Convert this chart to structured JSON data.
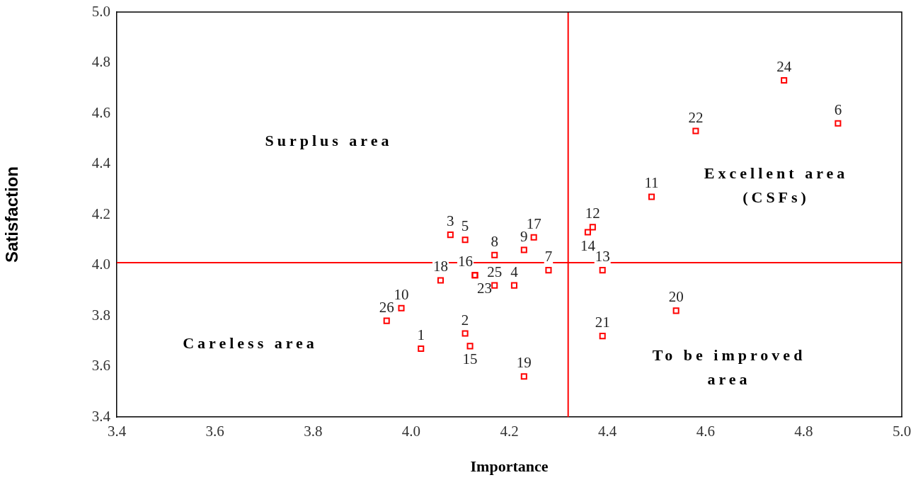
{
  "chart_data": {
    "type": "scatter",
    "xlabel": "Importance",
    "ylabel": "Satisfaction",
    "xlim": [
      3.4,
      5.0
    ],
    "ylim": [
      3.4,
      5.0
    ],
    "xticks": [
      3.4,
      3.6,
      3.8,
      {
        "value": 4,
        "label": "4.0"
      },
      4.2,
      4.4,
      4.6,
      4.8,
      {
        "value": 5,
        "label": "5.0"
      }
    ],
    "yticks": [
      3.4,
      3.6,
      3.8,
      {
        "value": 4,
        "label": "4.0"
      },
      4.2,
      4.4,
      4.6,
      4.8,
      {
        "value": 5,
        "label": "5.0"
      }
    ],
    "grid": false,
    "legend": false,
    "marker": "square",
    "series": [
      {
        "color": "#ff0000",
        "x": [
          4.02,
          4.11,
          4.08,
          4.21,
          4.11,
          4.87,
          4.28,
          4.17,
          4.23,
          3.98,
          4.49,
          4.37,
          4.39,
          4.36,
          4.12,
          4.13,
          4.25,
          4.06,
          4.23,
          4.54,
          4.39,
          4.58,
          4.13,
          4.76,
          4.17,
          3.95
        ],
        "values": [
          3.67,
          3.73,
          4.12,
          3.92,
          4.1,
          4.56,
          3.98,
          4.04,
          4.06,
          3.83,
          4.27,
          4.15,
          3.98,
          4.13,
          3.68,
          3.96,
          4.11,
          3.94,
          3.56,
          3.82,
          3.72,
          4.53,
          3.96,
          4.73,
          3.92,
          3.78
        ]
      }
    ],
    "ref_lines": [
      {
        "axis": "x",
        "value": 4.32,
        "color": "#ff0000"
      },
      {
        "axis": "y",
        "value": 4.01,
        "color": "#ff0000"
      }
    ],
    "annotations": [
      {
        "text": "1",
        "x": 4.02,
        "y": 3.67
      },
      {
        "text": "2",
        "x": 4.11,
        "y": 3.73
      },
      {
        "text": "3",
        "x": 4.08,
        "y": 4.12
      },
      {
        "text": "4",
        "x": 4.21,
        "y": 3.92
      },
      {
        "text": "5",
        "x": 4.11,
        "y": 4.1
      },
      {
        "text": "6",
        "x": 4.87,
        "y": 4.56
      },
      {
        "text": "7",
        "x": 4.28,
        "y": 3.98
      },
      {
        "text": "8",
        "x": 4.17,
        "y": 4.04
      },
      {
        "text": "9",
        "x": 4.23,
        "y": 4.06
      },
      {
        "text": "10",
        "x": 3.98,
        "y": 3.83
      },
      {
        "text": "11",
        "x": 4.49,
        "y": 4.27
      },
      {
        "text": "12",
        "x": 4.37,
        "y": 4.15
      },
      {
        "text": "13",
        "x": 4.39,
        "y": 3.98
      },
      {
        "text": "14",
        "x": 4.36,
        "y": 4.13
      },
      {
        "text": "15",
        "x": 4.12,
        "y": 3.68
      },
      {
        "text": "16",
        "x": 4.13,
        "y": 3.96
      },
      {
        "text": "17",
        "x": 4.25,
        "y": 4.11
      },
      {
        "text": "18",
        "x": 4.06,
        "y": 3.94
      },
      {
        "text": "19",
        "x": 4.23,
        "y": 3.56
      },
      {
        "text": "20",
        "x": 4.54,
        "y": 3.82
      },
      {
        "text": "21",
        "x": 4.39,
        "y": 3.72
      },
      {
        "text": "22",
        "x": 4.58,
        "y": 4.53
      },
      {
        "text": "23",
        "x": 4.13,
        "y": 3.96
      },
      {
        "text": "24",
        "x": 4.76,
        "y": 4.73
      },
      {
        "text": "25",
        "x": 4.17,
        "y": 3.92
      },
      {
        "text": "26",
        "x": 3.95,
        "y": 3.78
      },
      "Surplus area",
      "Excellent area\n(CSFs)",
      "Careless area",
      "To be improved\narea"
    ]
  }
}
